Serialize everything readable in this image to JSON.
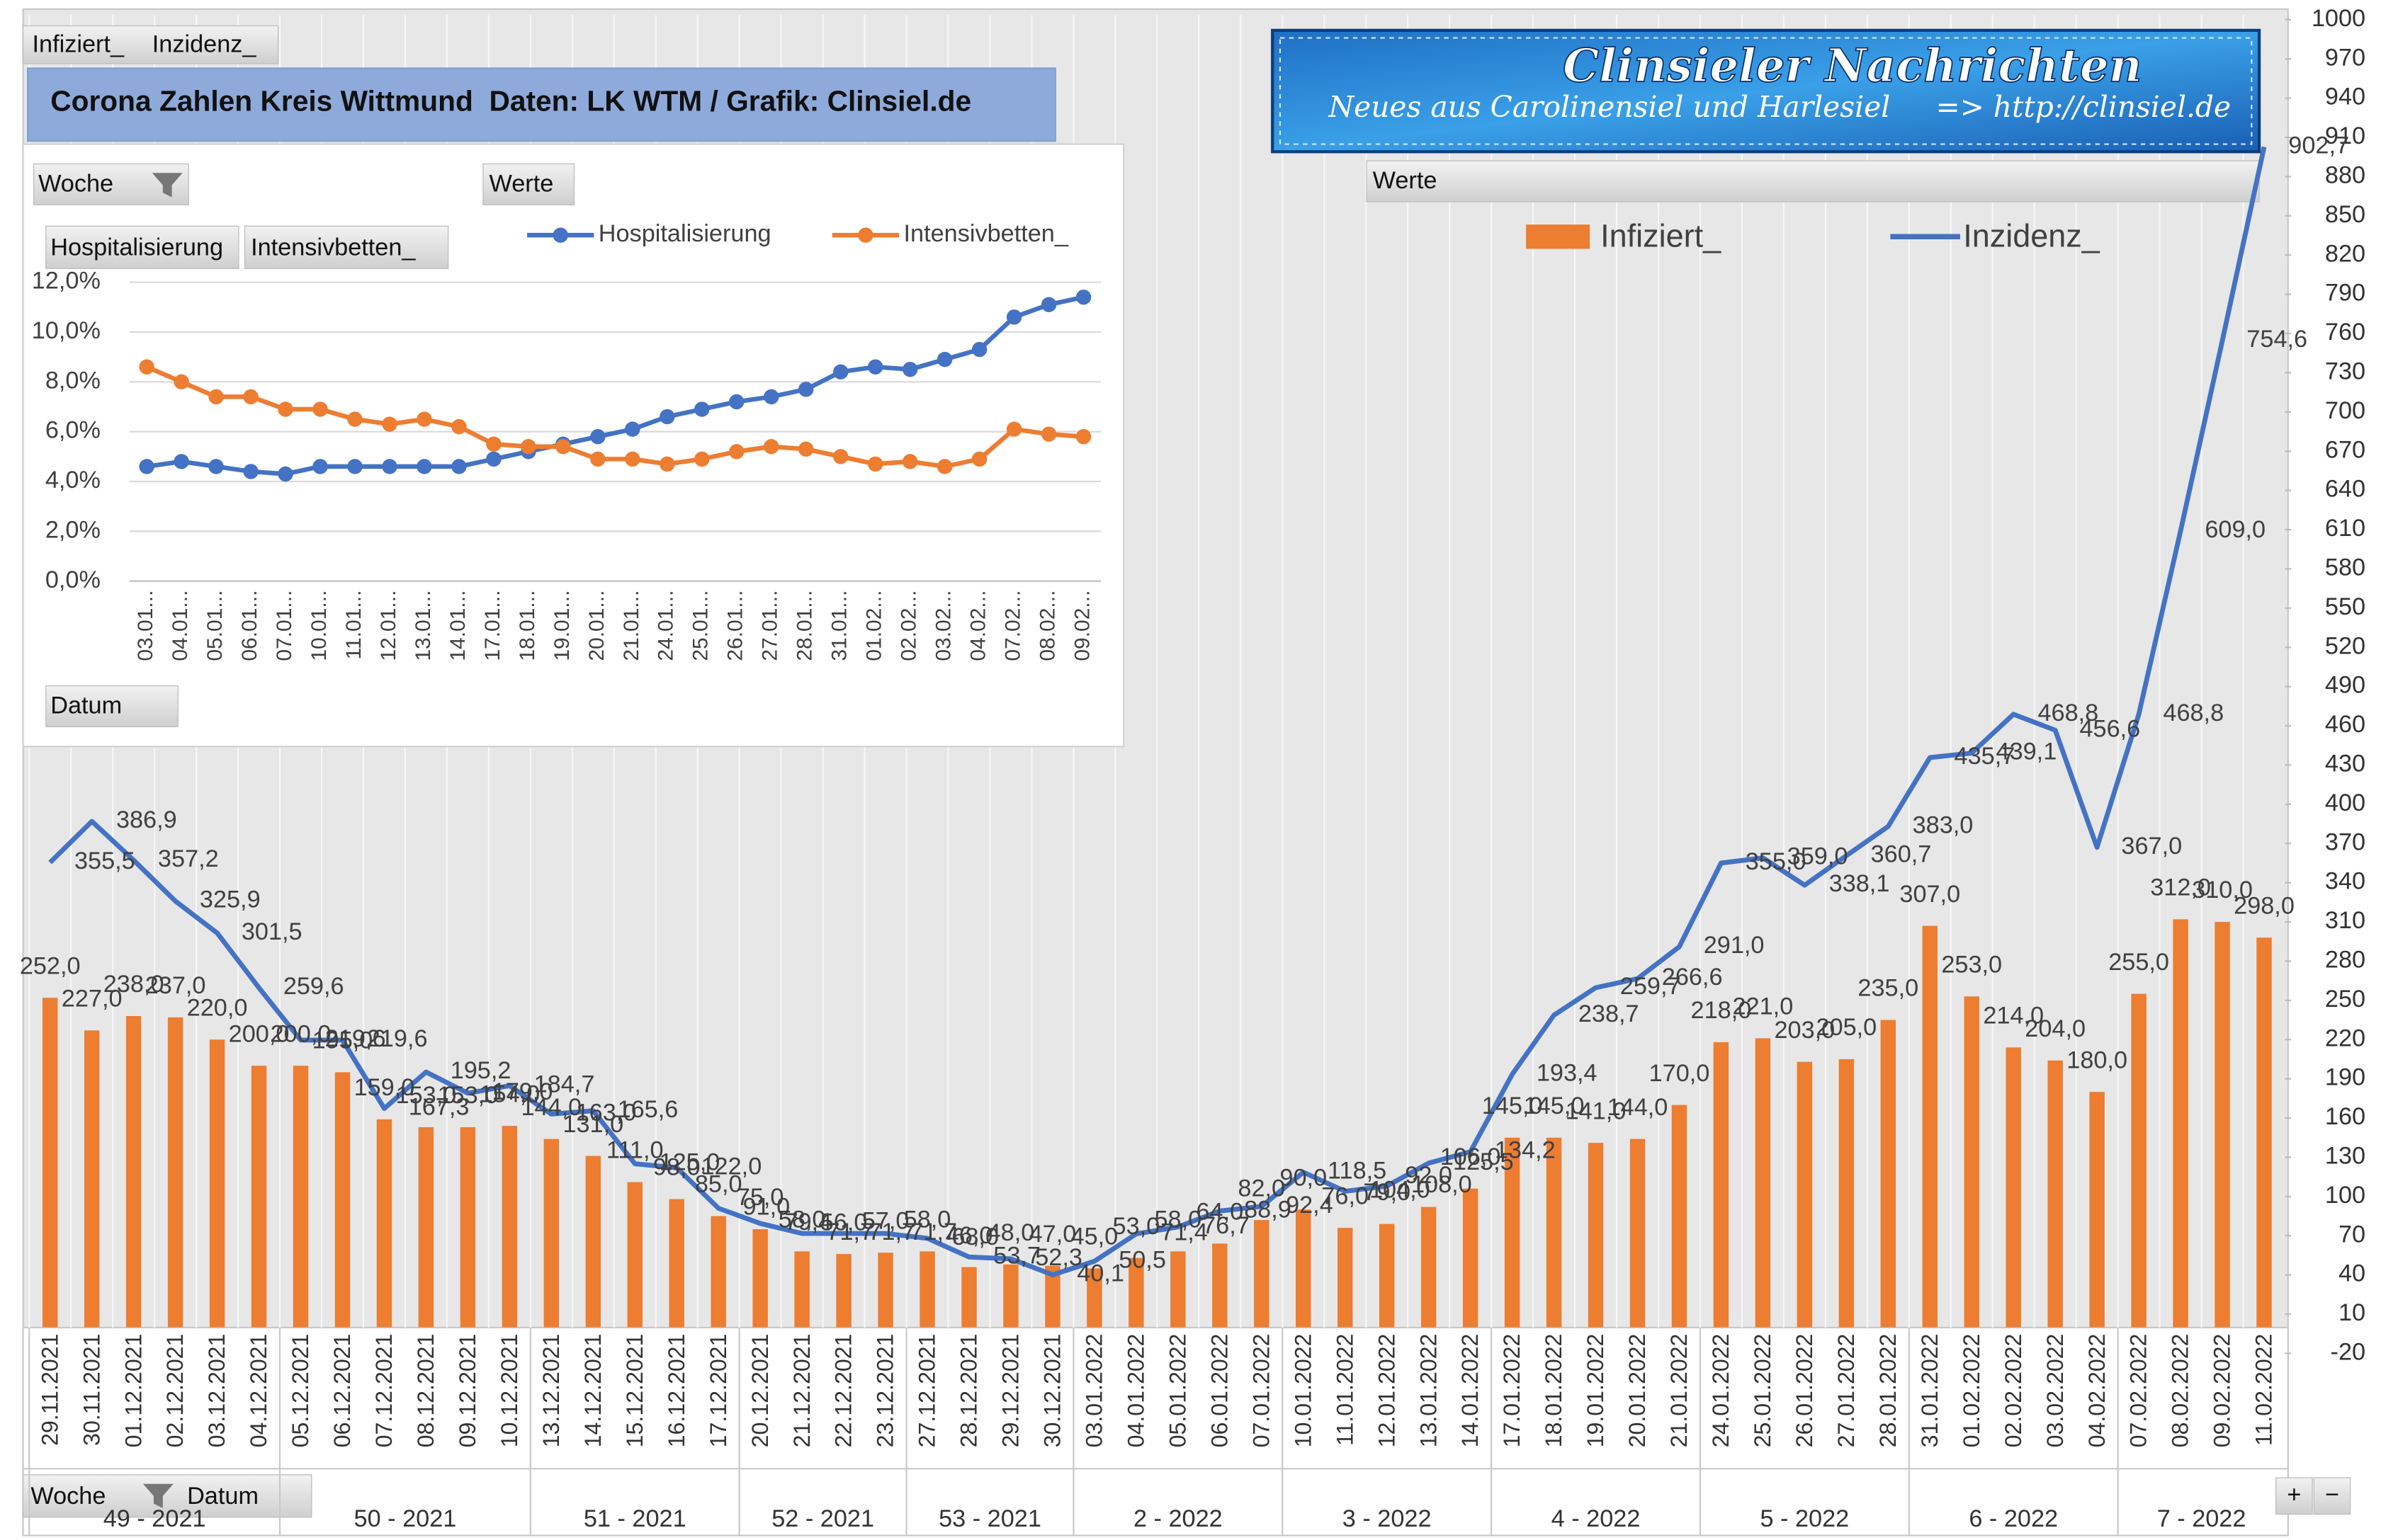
{
  "ui": {
    "top_buttons": [
      "Infiziert_",
      "Inzidenz_"
    ],
    "title": "Corona Zahlen Kreis Wittmund  Daten: LK WTM / Grafik: Clinsiel.de",
    "banner": {
      "title": "Clinsieler Nachrichten",
      "subtitle": "Neues aus Carolinensiel und Harlesiel",
      "url": "=> http://clinsiel.de"
    },
    "inset_buttons": {
      "row": "Woche",
      "values": "Werte",
      "series": [
        "Hospitalisierung",
        "Intensivbetten_"
      ],
      "axis": "Datum"
    },
    "main_buttons": {
      "values": "Werte",
      "row": [
        "Woche",
        "Datum"
      ]
    },
    "zoom": [
      "+",
      "−"
    ]
  },
  "chart_data": [
    {
      "type": "combo",
      "categories": [
        "29.11.2021",
        "30.11.2021",
        "01.12.2021",
        "02.12.2021",
        "03.12.2021",
        "04.12.2021",
        "05.12.2021",
        "06.12.2021",
        "07.12.2021",
        "08.12.2021",
        "09.12.2021",
        "10.12.2021",
        "13.12.2021",
        "14.12.2021",
        "15.12.2021",
        "16.12.2021",
        "17.12.2021",
        "20.12.2021",
        "21.12.2021",
        "22.12.2021",
        "23.12.2021",
        "27.12.2021",
        "28.12.2021",
        "29.12.2021",
        "30.12.2021",
        "03.01.2022",
        "04.01.2022",
        "05.01.2022",
        "06.01.2022",
        "07.01.2022",
        "10.01.2022",
        "11.01.2022",
        "12.01.2022",
        "13.01.2022",
        "14.01.2022",
        "17.01.2022",
        "18.01.2022",
        "19.01.2022",
        "20.01.2022",
        "21.01.2022",
        "24.01.2022",
        "25.01.2022",
        "26.01.2022",
        "27.01.2022",
        "28.01.2022",
        "31.01.2022",
        "01.02.2022",
        "02.02.2022",
        "03.02.2022",
        "04.02.2022",
        "07.02.2022",
        "08.02.2022",
        "09.02.2022",
        "11.02.2022"
      ],
      "weeks": [
        "49 - 2021",
        "50 - 2021",
        "51 - 2021",
        "52 - 2021",
        "53 - 2021",
        "2 - 2022",
        "3 - 2022",
        "4 - 2022",
        "5 - 2022",
        "6 - 2022",
        "7 - 2022"
      ],
      "series": [
        {
          "name": "Infiziert_",
          "type": "bar",
          "color": "#ed7d31",
          "values": [
            252,
            227,
            238,
            237,
            220,
            200,
            200,
            195,
            159,
            153,
            153,
            154,
            144,
            131,
            111,
            98,
            85,
            75,
            58,
            56,
            57,
            58,
            46,
            48,
            47,
            45,
            53,
            58,
            64,
            82,
            90,
            76,
            79,
            92,
            106,
            145,
            145,
            141,
            144,
            170,
            218,
            221,
            203,
            205,
            235,
            307,
            253,
            214,
            204,
            180,
            255,
            312,
            310,
            298
          ],
          "value_labels": [
            "252,0",
            "227,0",
            "238,0",
            "237,0",
            "220,0",
            "200,0",
            "200,0",
            "195,0",
            "159,0",
            "153,0",
            "153,0",
            "154,0",
            "144,0",
            "131,0",
            "111,0",
            "98,0",
            "85,0",
            "75,0",
            "58,0",
            "56,0",
            "57,0",
            "58,0",
            "46,0",
            "48,0",
            "47,0",
            "45,0",
            "53,0",
            "58,0",
            "64,0",
            "82,0",
            "90,0",
            "76,0",
            "79,0",
            "92,0",
            "106,0",
            "145,0",
            "145,0",
            "141,0",
            "144,0",
            "170,0",
            "218,0",
            "221,0",
            "203,0",
            "205,0",
            "235,0",
            "307,0",
            "253,0",
            "214,0",
            "204,0",
            "180,0",
            "255,0",
            "312,0",
            "310,0",
            "298,0"
          ]
        },
        {
          "name": "Inzidenz_",
          "type": "line",
          "color": "#4472c4",
          "values": [
            355.5,
            386.9,
            357.2,
            325.9,
            301.5,
            259.6,
            219.6,
            219.6,
            167.3,
            195.2,
            179.0,
            184.7,
            163.0,
            165.6,
            125.0,
            122.0,
            91.0,
            79.4,
            71.7,
            71.7,
            71.7,
            68.0,
            53.7,
            52.3,
            40.1,
            50.5,
            71.4,
            76.7,
            88.9,
            92.4,
            118.5,
            104.0,
            108.0,
            125.5,
            134.2,
            193.4,
            238.7,
            259.7,
            266.6,
            291.0,
            355.0,
            359.0,
            338.1,
            360.7,
            383.0,
            435.7,
            439.1,
            468.8,
            456.6,
            367.0,
            468.8,
            609.0,
            754.6,
            902.7
          ],
          "value_labels": [
            "355,5",
            "386,9",
            "357,2",
            "325,9",
            "301,5",
            "259,6",
            "219,6",
            "219,6",
            "167,3",
            "195,2",
            "179,0",
            "184,7",
            "163,0",
            "165,6",
            "125,0",
            "122,0",
            "91,0",
            "79,4",
            "71,7",
            "71,7",
            "71,7",
            "68,0",
            "53,7",
            "52,3",
            "40,1",
            "50,5",
            "71,4",
            "76,7",
            "88,9",
            "92,4",
            "118,5",
            "104,0",
            "108,0",
            "125,5",
            "134,2",
            "193,4",
            "238,7",
            "259,7",
            "266,6",
            "291,0",
            "355,0",
            "359,0",
            "338,1",
            "360,7",
            "383,0",
            "435,7",
            "439,1",
            "468,8",
            "456,6",
            "367,0",
            "468,8",
            "609,0",
            "754,6",
            "902,7"
          ]
        }
      ],
      "ylim": [
        -20,
        1000
      ],
      "yticks": [
        -20,
        10,
        40,
        70,
        100,
        130,
        160,
        190,
        220,
        250,
        280,
        310,
        340,
        370,
        400,
        430,
        460,
        490,
        520,
        550,
        580,
        610,
        640,
        670,
        700,
        730,
        760,
        790,
        820,
        850,
        880,
        910,
        940,
        970,
        1000
      ],
      "legend": "top",
      "grid": false
    },
    {
      "type": "line",
      "categories": [
        "03.01...",
        "04.01...",
        "05.01...",
        "06.01...",
        "07.01...",
        "10.01...",
        "11.01...",
        "12.01...",
        "13.01...",
        "14.01...",
        "17.01...",
        "18.01...",
        "19.01...",
        "20.01...",
        "21.01...",
        "24.01...",
        "25.01...",
        "26.01...",
        "27.01...",
        "28.01...",
        "31.01...",
        "01.02...",
        "02.02...",
        "03.02...",
        "04.02...",
        "07.02...",
        "08.02...",
        "09.02..."
      ],
      "series": [
        {
          "name": "Hospitalisierung",
          "color": "#4472c4",
          "values": [
            4.6,
            4.8,
            4.6,
            4.4,
            4.3,
            4.6,
            4.6,
            4.6,
            4.6,
            4.6,
            4.9,
            5.2,
            5.5,
            5.8,
            6.1,
            6.6,
            6.9,
            7.2,
            7.4,
            7.7,
            8.4,
            8.6,
            8.5,
            8.9,
            9.3,
            10.6,
            11.1,
            11.4
          ]
        },
        {
          "name": "Intensivbetten_",
          "color": "#ed7d31",
          "values": [
            8.6,
            8.0,
            7.4,
            7.4,
            6.9,
            6.9,
            6.5,
            6.3,
            6.5,
            6.2,
            5.5,
            5.4,
            5.4,
            4.9,
            4.9,
            4.7,
            4.9,
            5.2,
            5.4,
            5.3,
            5.0,
            4.7,
            4.8,
            4.6,
            4.9,
            6.1,
            5.9,
            5.8
          ]
        }
      ],
      "ylim": [
        0,
        12
      ],
      "yticks": [
        {
          "value": 0,
          "label": "0,0%"
        },
        {
          "value": 2,
          "label": "2,0%"
        },
        {
          "value": 4,
          "label": "4,0%"
        },
        {
          "value": 6,
          "label": "6,0%"
        },
        {
          "value": 8,
          "label": "8,0%"
        },
        {
          "value": 10,
          "label": "10,0%"
        },
        {
          "value": 12,
          "label": "12,0%"
        }
      ],
      "legend": "top",
      "grid": true
    }
  ]
}
